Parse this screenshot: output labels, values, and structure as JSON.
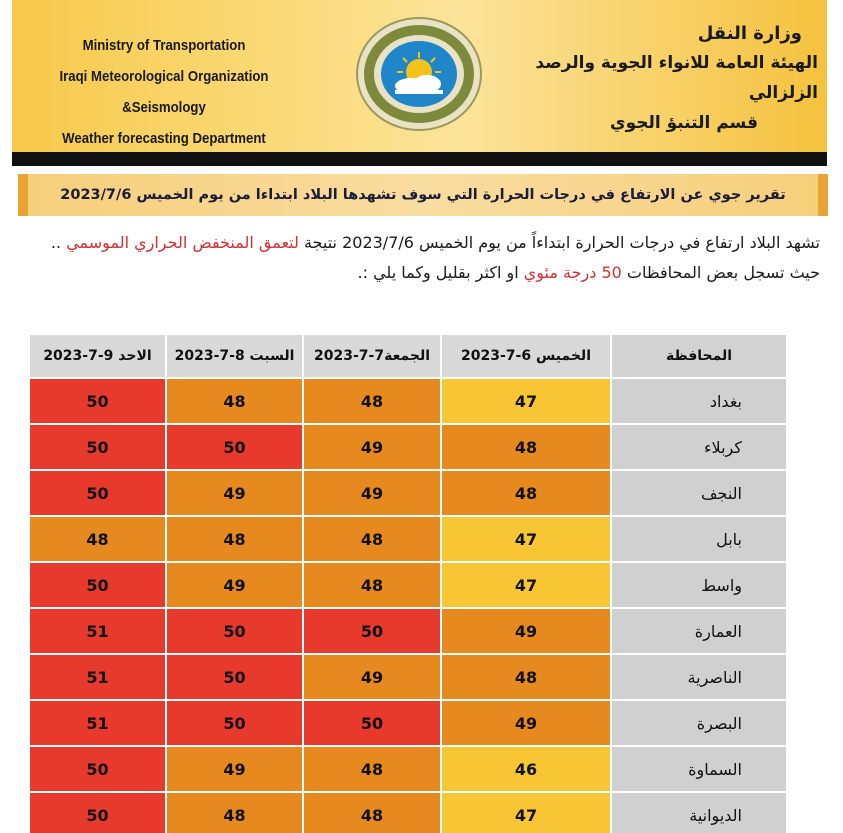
{
  "header": {
    "en_line1": "Ministry of Transportation",
    "en_line2": "Iraqi Meteorological Organization &Seismology",
    "en_line3": "Weather forecasting Department",
    "ar_line1": "وزارة النقل",
    "ar_line2": "الهيئة العامة للانواء الجوية والرصد الزلزالي",
    "ar_line3": "قسم التنبؤ الجوي",
    "logo_icon": "sun-cloud-emblem-icon"
  },
  "banner": {
    "title": "تقرير جوي عن الارتفاع في درجات الحرارة التي سوف تشهدها البلاد ابتداءا من يوم الخميس 2023/7/6"
  },
  "intro": {
    "part1": "تشهد البلاد ارتفاع في درجات الحرارة  ابتداءاً من يوم الخميس 2023/7/6 نتيجة ",
    "part1_red": "لتعمق المنخفض الحراري الموسمي",
    "part2": " .. حيث تسجل بعض المحافظات ",
    "part2_red": "50 درجة مئوي",
    "part3": " او اكثر بقليل وكما يلي :."
  },
  "table": {
    "headers": {
      "governorate": "المحافظة",
      "day1": "الخميس 6-7-2023",
      "day2": "الجمعة7-7-2023",
      "day3": "السبت 8-7-2023",
      "day4": "الاحد 9-7-2023"
    },
    "rows": [
      {
        "name": "بغداد",
        "d1": "47",
        "d2": "48",
        "d3": "48",
        "d4": "50"
      },
      {
        "name": "كربلاء",
        "d1": "48",
        "d2": "49",
        "d3": "50",
        "d4": "50"
      },
      {
        "name": "النجف",
        "d1": "48",
        "d2": "49",
        "d3": "49",
        "d4": "50"
      },
      {
        "name": "بابل",
        "d1": "47",
        "d2": "48",
        "d3": "48",
        "d4": "48"
      },
      {
        "name": "واسط",
        "d1": "47",
        "d2": "48",
        "d3": "49",
        "d4": "50"
      },
      {
        "name": "العمارة",
        "d1": "49",
        "d2": "50",
        "d3": "50",
        "d4": "51"
      },
      {
        "name": "الناصرية",
        "d1": "48",
        "d2": "49",
        "d3": "50",
        "d4": "51"
      },
      {
        "name": "البصرة",
        "d1": "49",
        "d2": "50",
        "d3": "50",
        "d4": "51"
      },
      {
        "name": "السماوة",
        "d1": "46",
        "d2": "48",
        "d3": "49",
        "d4": "50"
      },
      {
        "name": "الديوانية",
        "d1": "47",
        "d2": "48",
        "d3": "48",
        "d4": "50"
      }
    ]
  },
  "colors": {
    "yellow_46_47": "#f8c634",
    "orange_48_49": "#e6891e",
    "red_50_51": "#e83a2c",
    "governorate_cell": "#d0d0d0"
  }
}
